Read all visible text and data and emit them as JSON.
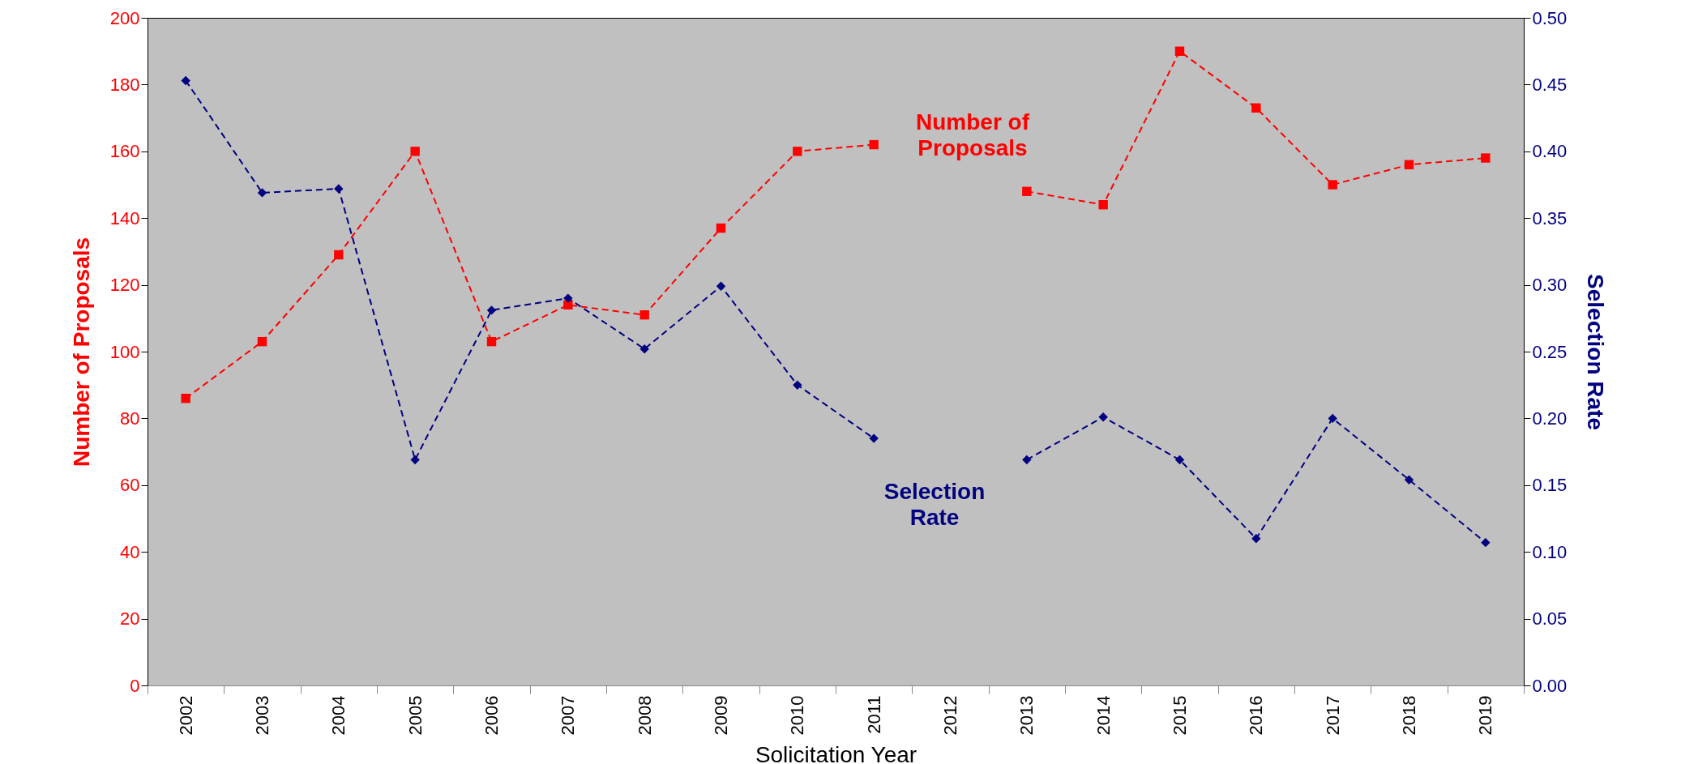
{
  "chart_data": {
    "type": "line",
    "xlabel": "Solicitation Year",
    "ylabel": "Number of Proposals",
    "y2label": "Selection Rate",
    "categories": [
      "2002",
      "2003",
      "2004",
      "2005",
      "2006",
      "2007",
      "2008",
      "2009",
      "2010",
      "2011",
      "2012",
      "2013",
      "2014",
      "2015",
      "2016",
      "2017",
      "2018",
      "2019"
    ],
    "series": [
      {
        "name": "Number of Proposals",
        "color": "#ff0000",
        "marker": "square",
        "values": [
          86,
          103,
          129,
          160,
          103,
          114,
          111,
          137,
          160,
          162,
          null,
          148,
          144,
          190,
          173,
          150,
          156,
          158
        ]
      },
      {
        "name": "Selection Rate",
        "color": "#000080",
        "marker": "diamond",
        "axis": "y2",
        "values": [
          0.453,
          0.369,
          0.372,
          0.169,
          0.281,
          0.29,
          0.252,
          0.299,
          0.225,
          0.185,
          null,
          0.169,
          0.201,
          0.169,
          0.11,
          0.2,
          0.154,
          0.107
        ]
      }
    ],
    "ylim": [
      0,
      200
    ],
    "yticks": [
      0,
      20,
      40,
      60,
      80,
      100,
      120,
      140,
      160,
      180,
      200
    ],
    "y2lim": [
      0,
      0.5
    ],
    "y2ticks": [
      {
        "value": 0,
        "label": "0.00"
      },
      {
        "value": 0.05,
        "label": "0.05"
      },
      {
        "value": 0.1,
        "label": "0.10"
      },
      {
        "value": 0.15,
        "label": "0.15"
      },
      {
        "value": 0.2,
        "label": "0.20"
      },
      {
        "value": 0.25,
        "label": "0.25"
      },
      {
        "value": 0.3,
        "label": "0.30"
      },
      {
        "value": 0.35,
        "label": "0.35"
      },
      {
        "value": 0.4,
        "label": "0.40"
      },
      {
        "value": 0.45,
        "label": "0.45"
      },
      {
        "value": 0.5,
        "label": "0.50"
      }
    ],
    "grid": false,
    "line_style": "dashed"
  }
}
